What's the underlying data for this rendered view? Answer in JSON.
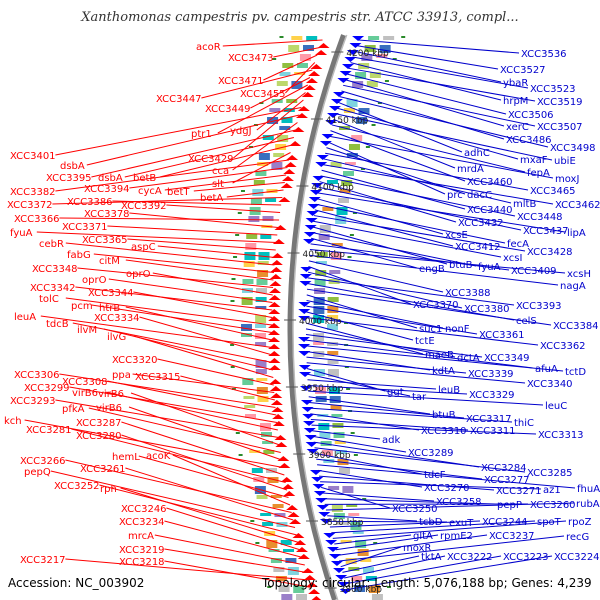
{
  "title": "Xanthomonas campestris pv. campestris str. ATCC 33913, compl...",
  "footer": {
    "accession": "Accession: NC_003902",
    "summary": "Topology: circular; Length: 5,076,188 bp; Genes: 4,239"
  },
  "colors": {
    "left_labels": "#ff0000",
    "right_labels": "#0000cc",
    "backbone": "#888888"
  },
  "scale": {
    "ticks": [
      "4200 kbp",
      "4150 kbp",
      "4100 kbp",
      "4050 kbp",
      "4000 kbp",
      "3950 kbp",
      "3900 kbp",
      "3850 kbp",
      "3800 kbp"
    ]
  },
  "left_genes": [
    [
      "acoR",
      196,
      46
    ],
    [
      "XCC3473",
      228,
      57
    ],
    [
      "XCC3471",
      218,
      80
    ],
    [
      "XCC3455",
      240,
      93
    ],
    [
      "XCC3447",
      156,
      98
    ],
    [
      "XCC3449",
      205,
      108
    ],
    [
      "ptr1",
      191,
      133
    ],
    [
      "ydgJ",
      230,
      130
    ],
    [
      "XCC3429",
      188,
      158
    ],
    [
      "XCC3401",
      10,
      155
    ],
    [
      "dsbA",
      60,
      165
    ],
    [
      "cca",
      212,
      170
    ],
    [
      "XCC3395",
      46,
      177
    ],
    [
      "dsbA",
      98,
      177
    ],
    [
      "betB",
      133,
      177
    ],
    [
      "slt",
      212,
      183
    ],
    [
      "XCC3382",
      10,
      191
    ],
    [
      "XCC3394",
      84,
      188
    ],
    [
      "cycA",
      138,
      190
    ],
    [
      "betT",
      167,
      191
    ],
    [
      "betA",
      200,
      197
    ],
    [
      "XCC3372",
      7,
      204
    ],
    [
      "XCC3386",
      67,
      201
    ],
    [
      "XCC3392",
      121,
      205
    ],
    [
      "XCC3366",
      14,
      218
    ],
    [
      "XCC3378",
      84,
      213
    ],
    [
      "XCC3371",
      62,
      226
    ],
    [
      "fyuA",
      10,
      232
    ],
    [
      "XCC3365",
      82,
      239
    ],
    [
      "aspC",
      131,
      246
    ],
    [
      "cebR",
      39,
      243
    ],
    [
      "fabG",
      67,
      254
    ],
    [
      "citM",
      99,
      260
    ],
    [
      "XCC3348",
      32,
      268
    ],
    [
      "oprO",
      126,
      273
    ],
    [
      "oprO",
      82,
      279
    ],
    [
      "XCC3342",
      30,
      287
    ],
    [
      "XCC3344",
      88,
      292
    ],
    [
      "tolC",
      39,
      298
    ],
    [
      "pcm",
      71,
      305
    ],
    [
      "htrB",
      99,
      307
    ],
    [
      "leuA",
      14,
      316
    ],
    [
      "XCC3334",
      94,
      317
    ],
    [
      "tdcB",
      46,
      323
    ],
    [
      "ilvM",
      77,
      329
    ],
    [
      "ilvG",
      107,
      336
    ],
    [
      "XCC3320",
      112,
      359
    ],
    [
      "ppa",
      112,
      374
    ],
    [
      "XCC3315",
      135,
      376
    ],
    [
      "XCC3306",
      14,
      374
    ],
    [
      "XCC3308",
      62,
      381
    ],
    [
      "XCC3299",
      24,
      387
    ],
    [
      "virB6",
      72,
      392
    ],
    [
      "XCC3293",
      10,
      400
    ],
    [
      "virB6",
      98,
      393
    ],
    [
      "pfkA",
      62,
      408
    ],
    [
      "virB6",
      96,
      407
    ],
    [
      "kch",
      4,
      420
    ],
    [
      "XCC3287",
      76,
      422
    ],
    [
      "XCC3281",
      26,
      429
    ],
    [
      "XCC3280",
      76,
      435
    ],
    [
      "hemL",
      112,
      456
    ],
    [
      "acoK",
      146,
      455
    ],
    [
      "XCC3266",
      20,
      460
    ],
    [
      "XCC3261",
      80,
      468
    ],
    [
      "pepQ",
      24,
      471
    ],
    [
      "XCC3252",
      54,
      485
    ],
    [
      "rph",
      100,
      488
    ],
    [
      "XCC3246",
      121,
      508
    ],
    [
      "XCC3234",
      119,
      521
    ],
    [
      "mrcA",
      128,
      535
    ],
    [
      "XCC3219",
      119,
      549
    ],
    [
      "XCC3217",
      20,
      559
    ],
    [
      "XCC3218",
      119,
      561
    ]
  ],
  "right_genes": [
    [
      "XCC3536",
      521,
      53
    ],
    [
      "XCC3527",
      500,
      69
    ],
    [
      "ybaR",
      503,
      82
    ],
    [
      "XCC3523",
      530,
      88
    ],
    [
      "hrpM",
      503,
      100
    ],
    [
      "XCC3519",
      537,
      101
    ],
    [
      "XCC3506",
      508,
      114
    ],
    [
      "xerC",
      506,
      126
    ],
    [
      "XCC3507",
      537,
      126
    ],
    [
      "XCC3486",
      506,
      139
    ],
    [
      "XCC3498",
      550,
      147
    ],
    [
      "adhC",
      464,
      152
    ],
    [
      "mxaF",
      520,
      159
    ],
    [
      "ubiE",
      554,
      160
    ],
    [
      "mrdA",
      457,
      168
    ],
    [
      "fepA",
      527,
      172
    ],
    [
      "XCC3460",
      467,
      181
    ],
    [
      "moxJ",
      555,
      178
    ],
    [
      "prc",
      447,
      194
    ],
    [
      "dacC",
      467,
      194
    ],
    [
      "XCC3465",
      530,
      190
    ],
    [
      "mltB",
      513,
      203
    ],
    [
      "XCC3462",
      555,
      204
    ],
    [
      "XCC3440",
      467,
      209
    ],
    [
      "XCC3448",
      517,
      216
    ],
    [
      "XCC3432",
      458,
      222
    ],
    [
      "XCC3437",
      523,
      230
    ],
    [
      "lipA",
      567,
      232
    ],
    [
      "xcsE",
      445,
      234
    ],
    [
      "fecA",
      507,
      243
    ],
    [
      "XCC3412",
      455,
      246
    ],
    [
      "XCC3428",
      527,
      251
    ],
    [
      "xcsI",
      503,
      257
    ],
    [
      "btuB",
      449,
      264
    ],
    [
      "fyuA",
      478,
      266
    ],
    [
      "engB",
      419,
      268
    ],
    [
      "XCC3409",
      511,
      270
    ],
    [
      "xcsH",
      567,
      273
    ],
    [
      "nagA",
      560,
      285
    ],
    [
      "XCC3388",
      445,
      292
    ],
    [
      "XCC3370",
      413,
      304
    ],
    [
      "XCC3380",
      464,
      308
    ],
    [
      "XCC3393",
      516,
      305
    ],
    [
      "celS",
      516,
      320
    ],
    [
      "XCC3384",
      553,
      325
    ],
    [
      "suc1",
      419,
      328
    ],
    [
      "nonF",
      445,
      328
    ],
    [
      "XCC3361",
      479,
      334
    ],
    [
      "tctE",
      415,
      340
    ],
    [
      "XCC3362",
      540,
      345
    ],
    [
      "maeB",
      425,
      354
    ],
    [
      "dctA",
      457,
      357
    ],
    [
      "XCC3349",
      484,
      357
    ],
    [
      "afuA",
      535,
      368
    ],
    [
      "tctD",
      565,
      371
    ],
    [
      "kdtA",
      432,
      370
    ],
    [
      "XCC3339",
      468,
      373
    ],
    [
      "XCC3340",
      527,
      383
    ],
    [
      "ggt",
      387,
      391
    ],
    [
      "tar",
      412,
      396
    ],
    [
      "leuB",
      438,
      389
    ],
    [
      "XCC3329",
      469,
      394
    ],
    [
      "leuC",
      545,
      405
    ],
    [
      "btuB",
      432,
      414
    ],
    [
      "XCC3317",
      466,
      418
    ],
    [
      "thiC",
      514,
      422
    ],
    [
      "XCC3310",
      421,
      430
    ],
    [
      "XCC3311",
      470,
      430
    ],
    [
      "XCC3313",
      538,
      434
    ],
    [
      "adk",
      382,
      439
    ],
    [
      "XCC3289",
      408,
      452
    ],
    [
      "XCC3284",
      481,
      467
    ],
    [
      "XCC3285",
      527,
      472
    ],
    [
      "tdcF",
      424,
      474
    ],
    [
      "XCC3277",
      484,
      479
    ],
    [
      "fhuA",
      577,
      488
    ],
    [
      "XCC3270",
      424,
      487
    ],
    [
      "XCC3271",
      496,
      490
    ],
    [
      "az1",
      543,
      489
    ],
    [
      "XCC3250",
      392,
      508
    ],
    [
      "XCC3258",
      436,
      501
    ],
    [
      "pepP",
      497,
      504
    ],
    [
      "XCC3260",
      530,
      504
    ],
    [
      "rubA",
      576,
      503
    ],
    [
      "tcbD",
      419,
      521
    ],
    [
      "exuT",
      449,
      522
    ],
    [
      "XCC3244",
      482,
      521
    ],
    [
      "spoT",
      537,
      521
    ],
    [
      "rpoZ",
      568,
      521
    ],
    [
      "gltA",
      413,
      535
    ],
    [
      "rpmE2",
      440,
      535
    ],
    [
      "XCC3237",
      489,
      535
    ],
    [
      "recG",
      566,
      536
    ],
    [
      "moxR",
      403,
      547
    ],
    [
      "tktA",
      421,
      556
    ],
    [
      "XCC3222",
      447,
      556
    ],
    [
      "XCC3223",
      503,
      556
    ],
    [
      "XCC3224",
      554,
      556
    ]
  ]
}
